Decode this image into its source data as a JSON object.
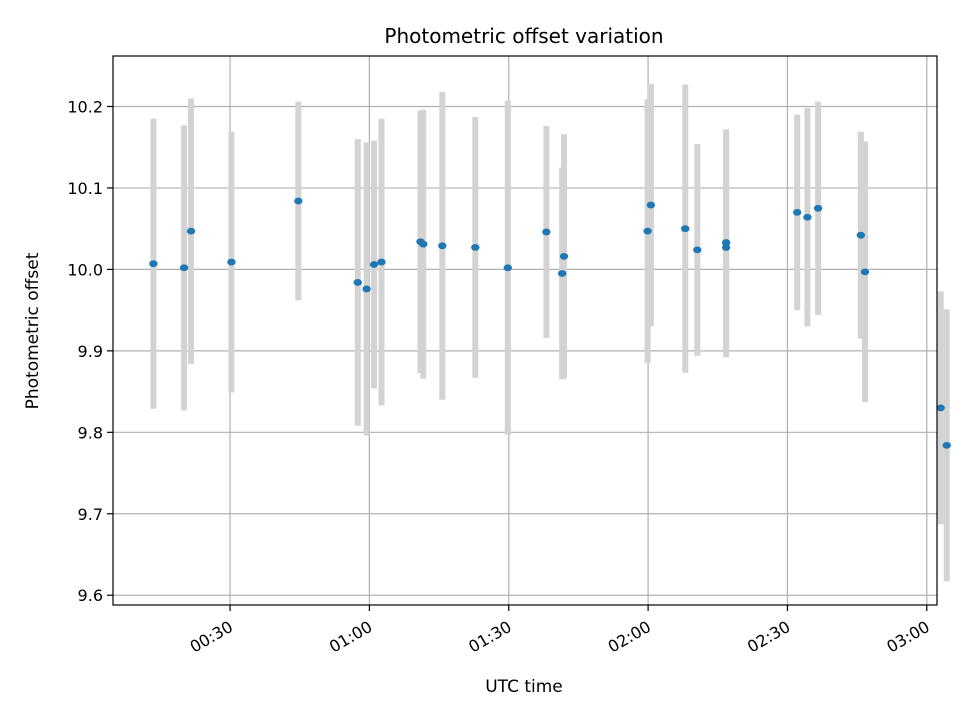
{
  "chart_data": {
    "type": "scatter",
    "title": "Photometric offset variation",
    "xlabel": "UTC time",
    "ylabel": "Photometric offset",
    "x_ticks": [
      "00:30",
      "01:00",
      "01:30",
      "02:00",
      "02:30",
      "03:00"
    ],
    "x_tick_minutes": [
      30,
      60,
      90,
      120,
      150,
      180
    ],
    "xlim_minutes": [
      4.8,
      182.2
    ],
    "y_ticks": [
      "9.6",
      "9.7",
      "9.8",
      "9.9",
      "10.0",
      "10.1",
      "10.2"
    ],
    "ylim": [
      9.588,
      10.262
    ],
    "grid": true,
    "colors": {
      "points": "#1f77b4",
      "errorbars": "#d3d3d3",
      "grid": "#b0b0b0"
    },
    "series": [
      {
        "x_minutes": [
          13.5,
          20.1,
          21.6,
          30.3,
          44.7,
          57.5,
          59.4,
          61.0,
          62.6,
          71.0,
          71.6,
          75.7,
          82.8,
          89.8,
          98.1,
          101.5,
          101.9,
          119.9,
          120.6,
          128.0,
          130.6,
          136.8,
          136.8,
          152.1,
          154.3,
          156.6,
          165.8,
          166.7,
          183.0,
          184.3
        ],
        "y": [
          10.007,
          10.002,
          10.047,
          10.009,
          10.084,
          9.984,
          9.976,
          10.006,
          10.009,
          10.034,
          10.031,
          10.029,
          10.027,
          10.002,
          10.046,
          9.995,
          10.016,
          10.047,
          10.079,
          10.05,
          10.024,
          10.027,
          10.033,
          10.07,
          10.064,
          10.075,
          10.042,
          9.997,
          9.83,
          9.784
        ],
        "yerr": [
          0.178,
          0.175,
          0.163,
          0.16,
          0.122,
          0.176,
          0.18,
          0.152,
          0.176,
          0.161,
          0.165,
          0.189,
          0.16,
          0.205,
          0.13,
          0.13,
          0.15,
          0.162,
          0.149,
          0.177,
          0.13,
          0.135,
          0.139,
          0.12,
          0.134,
          0.131,
          0.127,
          0.16,
          0.143,
          0.167
        ]
      }
    ]
  }
}
